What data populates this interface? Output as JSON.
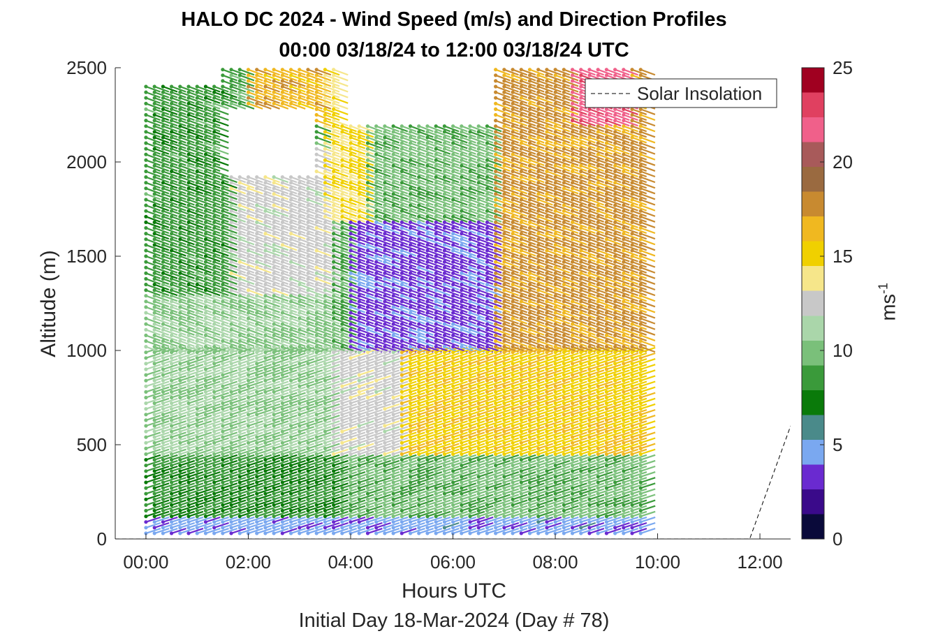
{
  "chart_data": {
    "type": "wind barb profile",
    "title_line1": "HALO DC 2024 - Wind Speed (m/s) and Direction Profiles",
    "title_line2": "00:00 03/18/24 to 12:00 03/18/24  UTC",
    "xlabel": "Hours UTC",
    "xlabel2": "Initial Day 18-Mar-2024 (Day # 78)",
    "ylabel": "Altitude (m)",
    "xlim_hours": [
      -0.6,
      12.6
    ],
    "ylim": [
      0,
      2500
    ],
    "x_ticks": [
      {
        "value": 0,
        "label": "00:00"
      },
      {
        "value": 2,
        "label": "02:00"
      },
      {
        "value": 4,
        "label": "04:00"
      },
      {
        "value": 6,
        "label": "06:00"
      },
      {
        "value": 8,
        "label": "08:00"
      },
      {
        "value": 10,
        "label": "10:00"
      },
      {
        "value": 12,
        "label": "12:00"
      }
    ],
    "y_ticks": [
      {
        "value": 0,
        "label": "0"
      },
      {
        "value": 500,
        "label": "500"
      },
      {
        "value": 1000,
        "label": "1000"
      },
      {
        "value": 1500,
        "label": "1500"
      },
      {
        "value": 2000,
        "label": "2000"
      },
      {
        "value": 2500,
        "label": "2500"
      }
    ],
    "colorbar": {
      "label": "ms",
      "label_exponent": "-1",
      "range": [
        0,
        25
      ],
      "ticks": [
        {
          "value": 0,
          "label": "0"
        },
        {
          "value": 5,
          "label": "5"
        },
        {
          "value": 10,
          "label": "10"
        },
        {
          "value": 15,
          "label": "15"
        },
        {
          "value": 20,
          "label": "20"
        },
        {
          "value": 25,
          "label": "25"
        }
      ],
      "colors": [
        "#0a0a3a",
        "#3a0a8a",
        "#6a2ad0",
        "#7aa8f0",
        "#4a8a8a",
        "#0a7a0a",
        "#3a9a3a",
        "#7ac07a",
        "#aad6aa",
        "#c8c8c8",
        "#f6e68a",
        "#f0d000",
        "#f0b820",
        "#c88a30",
        "#9a6a40",
        "#a85a5a",
        "#f0608a",
        "#e04060",
        "#a00020"
      ]
    },
    "legend": {
      "entries": [
        "Solar Insolation"
      ],
      "position": "top-right"
    },
    "barb_grid": {
      "time_start_hours": 0.0,
      "time_step_hours": 0.1667,
      "time_end_hours": 9.75,
      "altitude_start_m": 30,
      "altitude_step_m": 30,
      "altitude_end_m": 2490
    },
    "speed_regions_ms": [
      {
        "t0": 0.0,
        "t1": 10.0,
        "z0": 0,
        "z1": 100,
        "speed": 4.5
      },
      {
        "t0": 0.0,
        "t1": 3.8,
        "z0": 100,
        "z1": 450,
        "speed": 8.0
      },
      {
        "t0": 3.8,
        "t1": 10.0,
        "z0": 100,
        "z1": 450,
        "speed": 9.5
      },
      {
        "t0": 0.0,
        "t1": 3.6,
        "z0": 450,
        "z1": 1300,
        "speed": 10.5
      },
      {
        "t0": 3.6,
        "t1": 5.0,
        "z0": 450,
        "z1": 1000,
        "speed": 12.5
      },
      {
        "t0": 5.0,
        "t1": 10.0,
        "z0": 450,
        "z1": 1000,
        "speed": 15.5
      },
      {
        "t0": 4.0,
        "t1": 6.8,
        "z0": 1000,
        "z1": 1700,
        "speed": 3.5
      },
      {
        "t0": 6.8,
        "t1": 10.0,
        "z0": 1000,
        "z1": 2500,
        "speed": 17.5
      },
      {
        "t0": 0.0,
        "t1": 1.6,
        "z0": 1300,
        "z1": 2500,
        "speed": 8.5
      },
      {
        "t0": 1.6,
        "t1": 3.6,
        "z0": 1300,
        "z1": 2100,
        "speed": 12.5
      },
      {
        "t0": 3.4,
        "t1": 4.2,
        "z0": 1700,
        "z1": 2500,
        "speed": 14.5
      },
      {
        "t0": 4.2,
        "t1": 6.8,
        "z0": 1700,
        "z1": 2500,
        "speed": 9.5
      },
      {
        "t0": 2.0,
        "t1": 3.4,
        "z0": 2200,
        "z1": 2500,
        "speed": 16.5
      },
      {
        "t0": 8.3,
        "t1": 9.5,
        "z0": 2200,
        "z1": 2500,
        "speed": 22.0
      }
    ],
    "missing_data_regions": [
      {
        "t0": 1.5,
        "t1": 3.3,
        "z0": 1950,
        "z1": 2300
      },
      {
        "t0": 3.8,
        "t1": 6.8,
        "z0": 2200,
        "z1": 2500
      },
      {
        "t0": 0.0,
        "t1": 1.4,
        "z0": 2420,
        "z1": 2500
      }
    ],
    "solar_insolation_curve": [
      {
        "t": -0.6,
        "z": 0
      },
      {
        "t": 11.8,
        "z": 0
      },
      {
        "t": 12.6,
        "z": 600
      }
    ]
  }
}
